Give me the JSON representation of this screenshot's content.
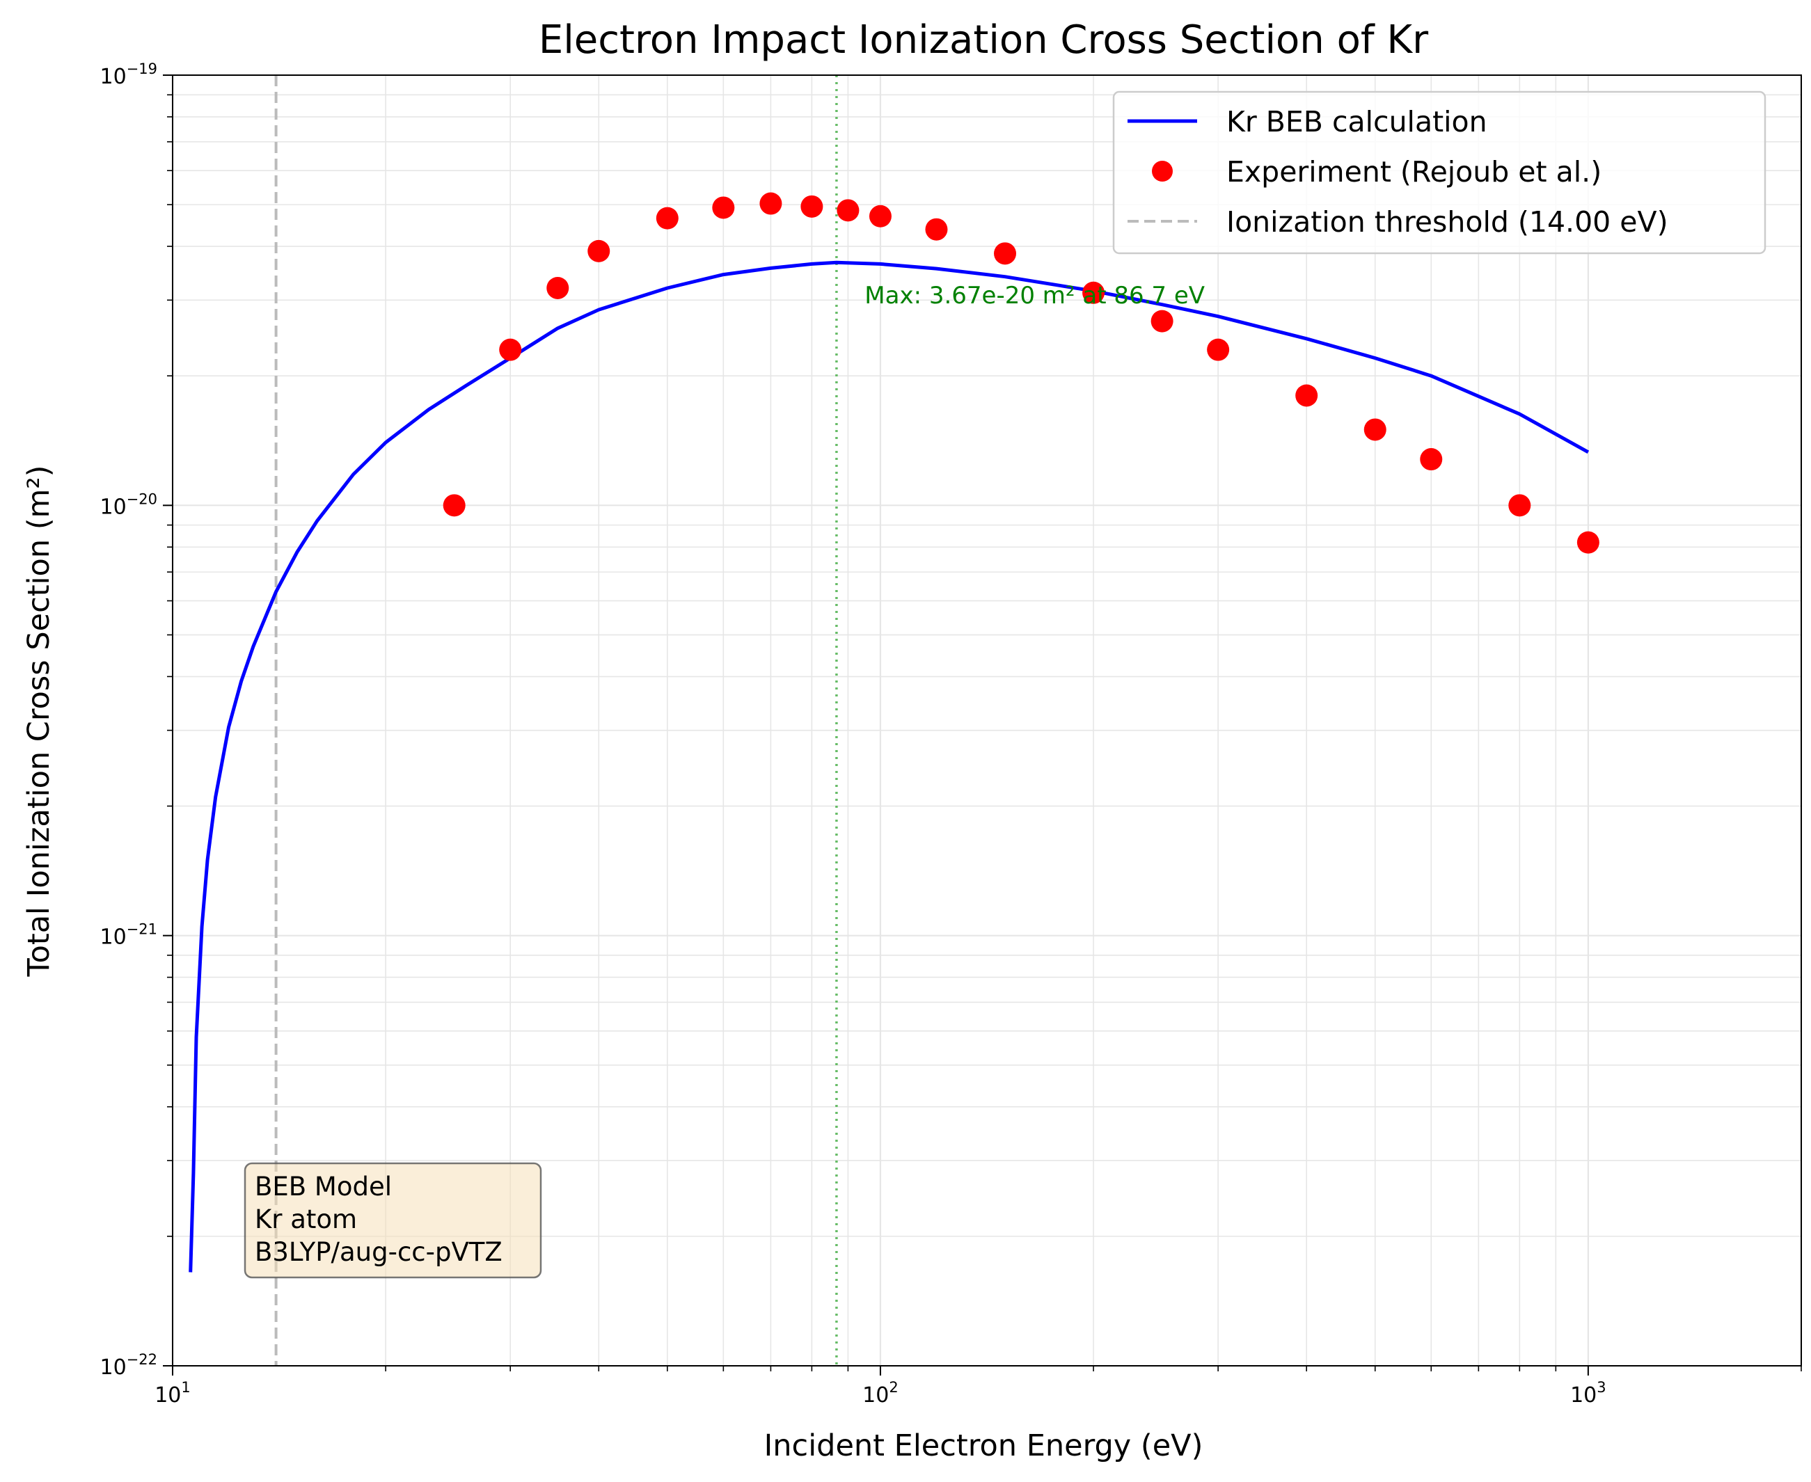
{
  "chart_data": {
    "type": "line",
    "title": "Electron Impact Ionization Cross Section of Kr",
    "xlabel": "Incident Electron Energy (eV)",
    "ylabel": "Total Ionization Cross Section (m²)",
    "xscale": "log",
    "yscale": "log",
    "xlim": [
      10,
      2000
    ],
    "ylim": [
      1e-22,
      1e-19
    ],
    "grid": true,
    "x_ticks": [
      {
        "value": 10,
        "base": "10",
        "exp": "1"
      },
      {
        "value": 100,
        "base": "10",
        "exp": "2"
      },
      {
        "value": 1000,
        "base": "10",
        "exp": "3"
      }
    ],
    "y_ticks": [
      {
        "value": 1e-22,
        "base": "10",
        "exp": "−22"
      },
      {
        "value": 1e-21,
        "base": "10",
        "exp": "−21"
      },
      {
        "value": 1e-20,
        "base": "10",
        "exp": "−20"
      },
      {
        "value": 1e-19,
        "base": "10",
        "exp": "−19"
      }
    ],
    "series": [
      {
        "name": "Kr BEB calculation",
        "kind": "line",
        "color": "#0000ff",
        "x": [
          10.6,
          10.7,
          10.8,
          11.0,
          11.2,
          11.5,
          12.0,
          12.5,
          13.0,
          14.0,
          15.0,
          16.0,
          18.0,
          20.0,
          23.0,
          26.0,
          30.0,
          35.0,
          40.0,
          50.0,
          60.0,
          70.0,
          80.0,
          86.7,
          100.0,
          120.0,
          150.0,
          200.0,
          250.0,
          300.0,
          400.0,
          500.0,
          600.0,
          800.0,
          1000.0
        ],
        "y": [
          1.65e-22,
          2.8e-22,
          5.8e-22,
          1.05e-21,
          1.5e-21,
          2.1e-21,
          3.05e-21,
          3.9e-21,
          4.7e-21,
          6.3e-21,
          7.8e-21,
          9.2e-21,
          1.18e-20,
          1.4e-20,
          1.67e-20,
          1.9e-20,
          2.2e-20,
          2.58e-20,
          2.85e-20,
          3.2e-20,
          3.44e-20,
          3.56e-20,
          3.64e-20,
          3.67e-20,
          3.64e-20,
          3.55e-20,
          3.4e-20,
          3.15e-20,
          2.93e-20,
          2.75e-20,
          2.44e-20,
          2.2e-20,
          2e-20,
          1.63e-20,
          1.33e-20
        ]
      },
      {
        "name": "Experiment (Rejoub et al.)",
        "kind": "scatter",
        "color": "#ff0000",
        "x": [
          25,
          30,
          35,
          40,
          50,
          60,
          70,
          80,
          90,
          100,
          120,
          150,
          200,
          250,
          300,
          400,
          500,
          600,
          800,
          1000
        ],
        "y": [
          1e-20,
          2.3e-20,
          3.2e-20,
          3.9e-20,
          4.65e-20,
          4.92e-20,
          5.03e-20,
          4.95e-20,
          4.85e-20,
          4.7e-20,
          4.38e-20,
          3.85e-20,
          3.12e-20,
          2.68e-20,
          2.3e-20,
          1.8e-20,
          1.5e-20,
          1.28e-20,
          1e-20,
          8.2e-21
        ]
      }
    ],
    "threshold": {
      "label": "Ionization threshold (14.00 eV)",
      "x": 14.0,
      "color": "#bbbbbb"
    },
    "max_line": {
      "x": 86.7,
      "color": "#66bb66"
    },
    "annotation": {
      "text": "Max: 3.67e-20 m² at 86.7 eV",
      "x": 95,
      "y": 2.95e-20,
      "color": "#008000"
    },
    "legend": {
      "placement": "upper-right"
    },
    "infobox": {
      "lines": [
        "BEB Model",
        "Kr atom",
        "B3LYP/aug-cc-pVTZ"
      ]
    }
  }
}
